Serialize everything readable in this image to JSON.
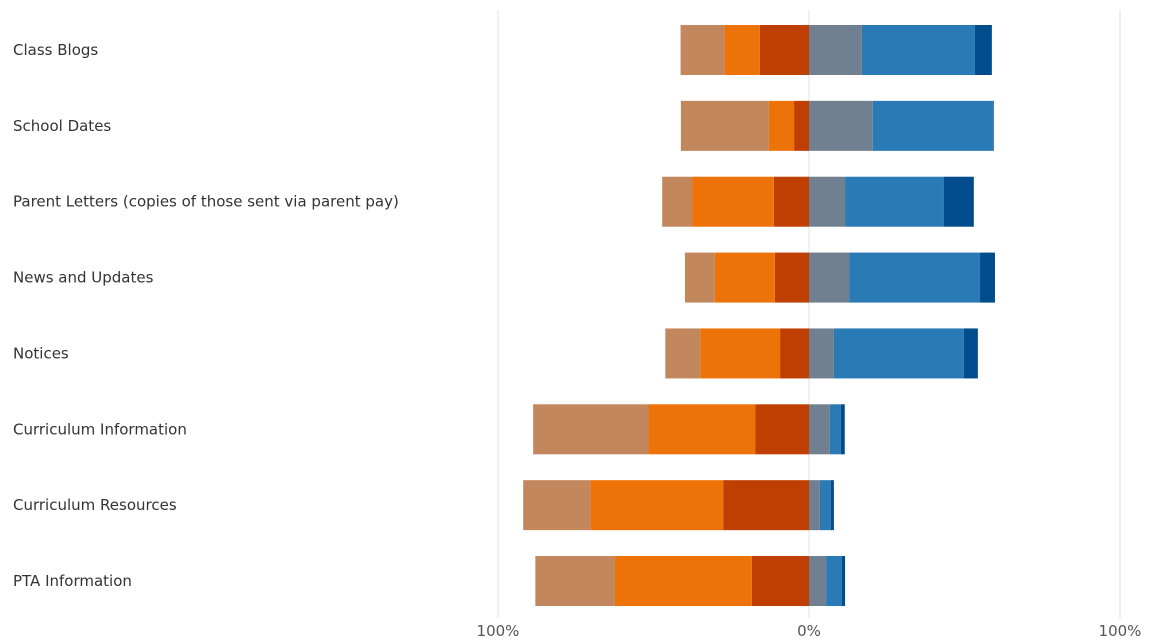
{
  "chart_data": {
    "type": "bar",
    "orientation": "horizontal",
    "stacking": "diverging",
    "categories": [
      "Class Blogs",
      "School Dates",
      "Parent Letters (copies of those sent via parent pay)",
      "News and Updates",
      "Notices",
      "Curriculum Information",
      "Curriculum Resources",
      "PTA Information"
    ],
    "series": [
      {
        "side": "negative",
        "color": "#BF3F00",
        "values": [
          -15.8,
          -4.8,
          -11.3,
          -11.0,
          -9.3,
          -17.2,
          -27.6,
          -18.4
        ]
      },
      {
        "side": "negative",
        "color": "#ED7308",
        "values": [
          -11.4,
          -8.1,
          -26.3,
          -19.3,
          -25.7,
          -34.4,
          -42.7,
          -44.0
        ]
      },
      {
        "side": "negative",
        "color": "#C2875C",
        "values": [
          -14.1,
          -28.3,
          -9.6,
          -9.6,
          -11.2,
          -37.1,
          -21.6,
          -25.6
        ]
      },
      {
        "side": "positive",
        "color": "#708090",
        "values": [
          17.0,
          20.5,
          11.6,
          12.9,
          8.0,
          6.7,
          3.5,
          5.5
        ]
      },
      {
        "side": "positive",
        "color": "#2A7AB5",
        "values": [
          36.3,
          38.6,
          31.8,
          42.1,
          41.8,
          3.5,
          3.5,
          5.1
        ]
      },
      {
        "side": "positive",
        "color": "#004C8C",
        "values": [
          5.5,
          0.3,
          9.6,
          4.8,
          4.5,
          1.3,
          1.0,
          1.0
        ]
      }
    ],
    "xlim": [
      -100,
      100
    ],
    "xticks": [
      {
        "value": -100,
        "label": "100%"
      },
      {
        "value": 0,
        "label": "0%"
      },
      {
        "value": 100,
        "label": "100%"
      }
    ],
    "grid": {
      "vertical_lines_at": [
        -100,
        0,
        100
      ],
      "color": "#e0e0e0"
    },
    "legend": "none",
    "title": "",
    "xlabel": "",
    "ylabel": ""
  }
}
